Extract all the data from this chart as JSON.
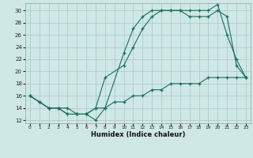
{
  "xlabel": "Humidex (Indice chaleur)",
  "bg_color": "#cfe8e5",
  "grid_color": "#aaccca",
  "line_color": "#1a6e60",
  "xlim": [
    -0.5,
    23.5
  ],
  "ylim": [
    11.5,
    31.2
  ],
  "xticks": [
    0,
    1,
    2,
    3,
    4,
    5,
    6,
    7,
    8,
    9,
    10,
    11,
    12,
    13,
    14,
    15,
    16,
    17,
    18,
    19,
    20,
    21,
    22,
    23
  ],
  "yticks": [
    12,
    14,
    16,
    18,
    20,
    22,
    24,
    26,
    28,
    30
  ],
  "line1_x": [
    0,
    1,
    2,
    3,
    4,
    5,
    6,
    7,
    8,
    10,
    11,
    12,
    13,
    14,
    15,
    16,
    17,
    18,
    19,
    20,
    21,
    22,
    23
  ],
  "line1_y": [
    16,
    15,
    14,
    14,
    14,
    13,
    13,
    12,
    14,
    23,
    27,
    29,
    30,
    30,
    30,
    30,
    30,
    30,
    30,
    31,
    26,
    22,
    19
  ],
  "line2_x": [
    0,
    1,
    2,
    3,
    4,
    5,
    6,
    7,
    8,
    10,
    11,
    12,
    13,
    14,
    15,
    16,
    17,
    18,
    19,
    20,
    21,
    22,
    23
  ],
  "line2_y": [
    16,
    15,
    14,
    14,
    13,
    13,
    13,
    14,
    19,
    21,
    24,
    27,
    29,
    30,
    30,
    30,
    29,
    29,
    29,
    30,
    29,
    21,
    19
  ],
  "line3_x": [
    0,
    1,
    2,
    3,
    4,
    5,
    6,
    7,
    8,
    9,
    10,
    11,
    12,
    13,
    14,
    15,
    16,
    17,
    18,
    19,
    20,
    21,
    22,
    23
  ],
  "line3_y": [
    16,
    15,
    14,
    14,
    13,
    13,
    13,
    14,
    14,
    15,
    15,
    16,
    16,
    17,
    17,
    18,
    18,
    18,
    18,
    19,
    19,
    19,
    19,
    19
  ]
}
